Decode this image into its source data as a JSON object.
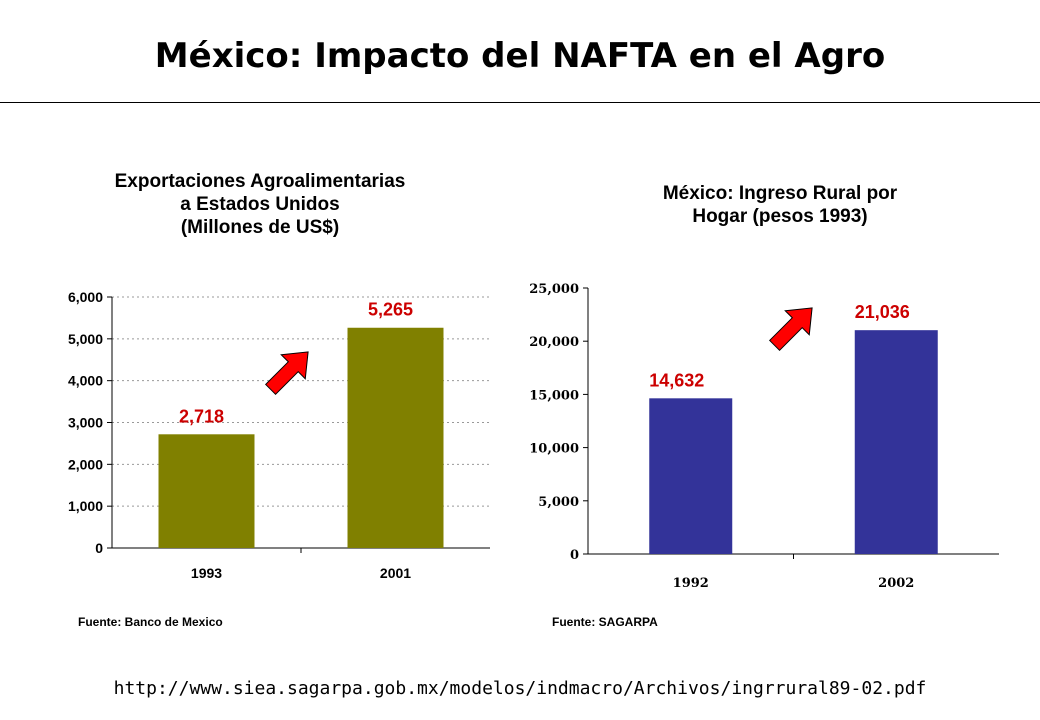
{
  "page": {
    "title": "México: Impacto del NAFTA en el Agro",
    "url": "http://www.siea.sagarpa.gob.mx/modelos/indmacro/Archivos/ingrrural89-02.pdf"
  },
  "colors": {
    "olive_bar": "#808000",
    "blue_bar": "#333399",
    "label_red": "#cc0000",
    "arrow_red": "#ff0000"
  },
  "chart_data": [
    {
      "type": "bar",
      "title": "Exportaciones Agroalimentarias\na Estados Unidos\n(Millones de US$)",
      "categories": [
        "1993",
        "2001"
      ],
      "values": [
        2718,
        5265
      ],
      "data_labels": [
        "2,718",
        "5,265"
      ],
      "ylim": [
        0,
        6000
      ],
      "yticks": [
        0,
        1000,
        2000,
        3000,
        4000,
        5000,
        6000
      ],
      "ytick_labels": [
        "0",
        "1,000",
        "2,000",
        "3,000",
        "4,000",
        "5,000",
        "6,000"
      ],
      "grid": "horizontal dotted",
      "source": "Fuente: Banco de Mexico"
    },
    {
      "type": "bar",
      "title": "México: Ingreso Rural por\nHogar (pesos 1993)",
      "categories": [
        "1992",
        "2002"
      ],
      "values": [
        14632,
        21036
      ],
      "data_labels": [
        "14,632",
        "21,036"
      ],
      "ylim": [
        0,
        25000
      ],
      "yticks": [
        0,
        5000,
        10000,
        15000,
        20000,
        25000
      ],
      "ytick_labels": [
        "0",
        "5,000",
        "10,000",
        "15,000",
        "20,000",
        "25,000"
      ],
      "grid": "none",
      "source": "Fuente: SAGARPA"
    }
  ]
}
